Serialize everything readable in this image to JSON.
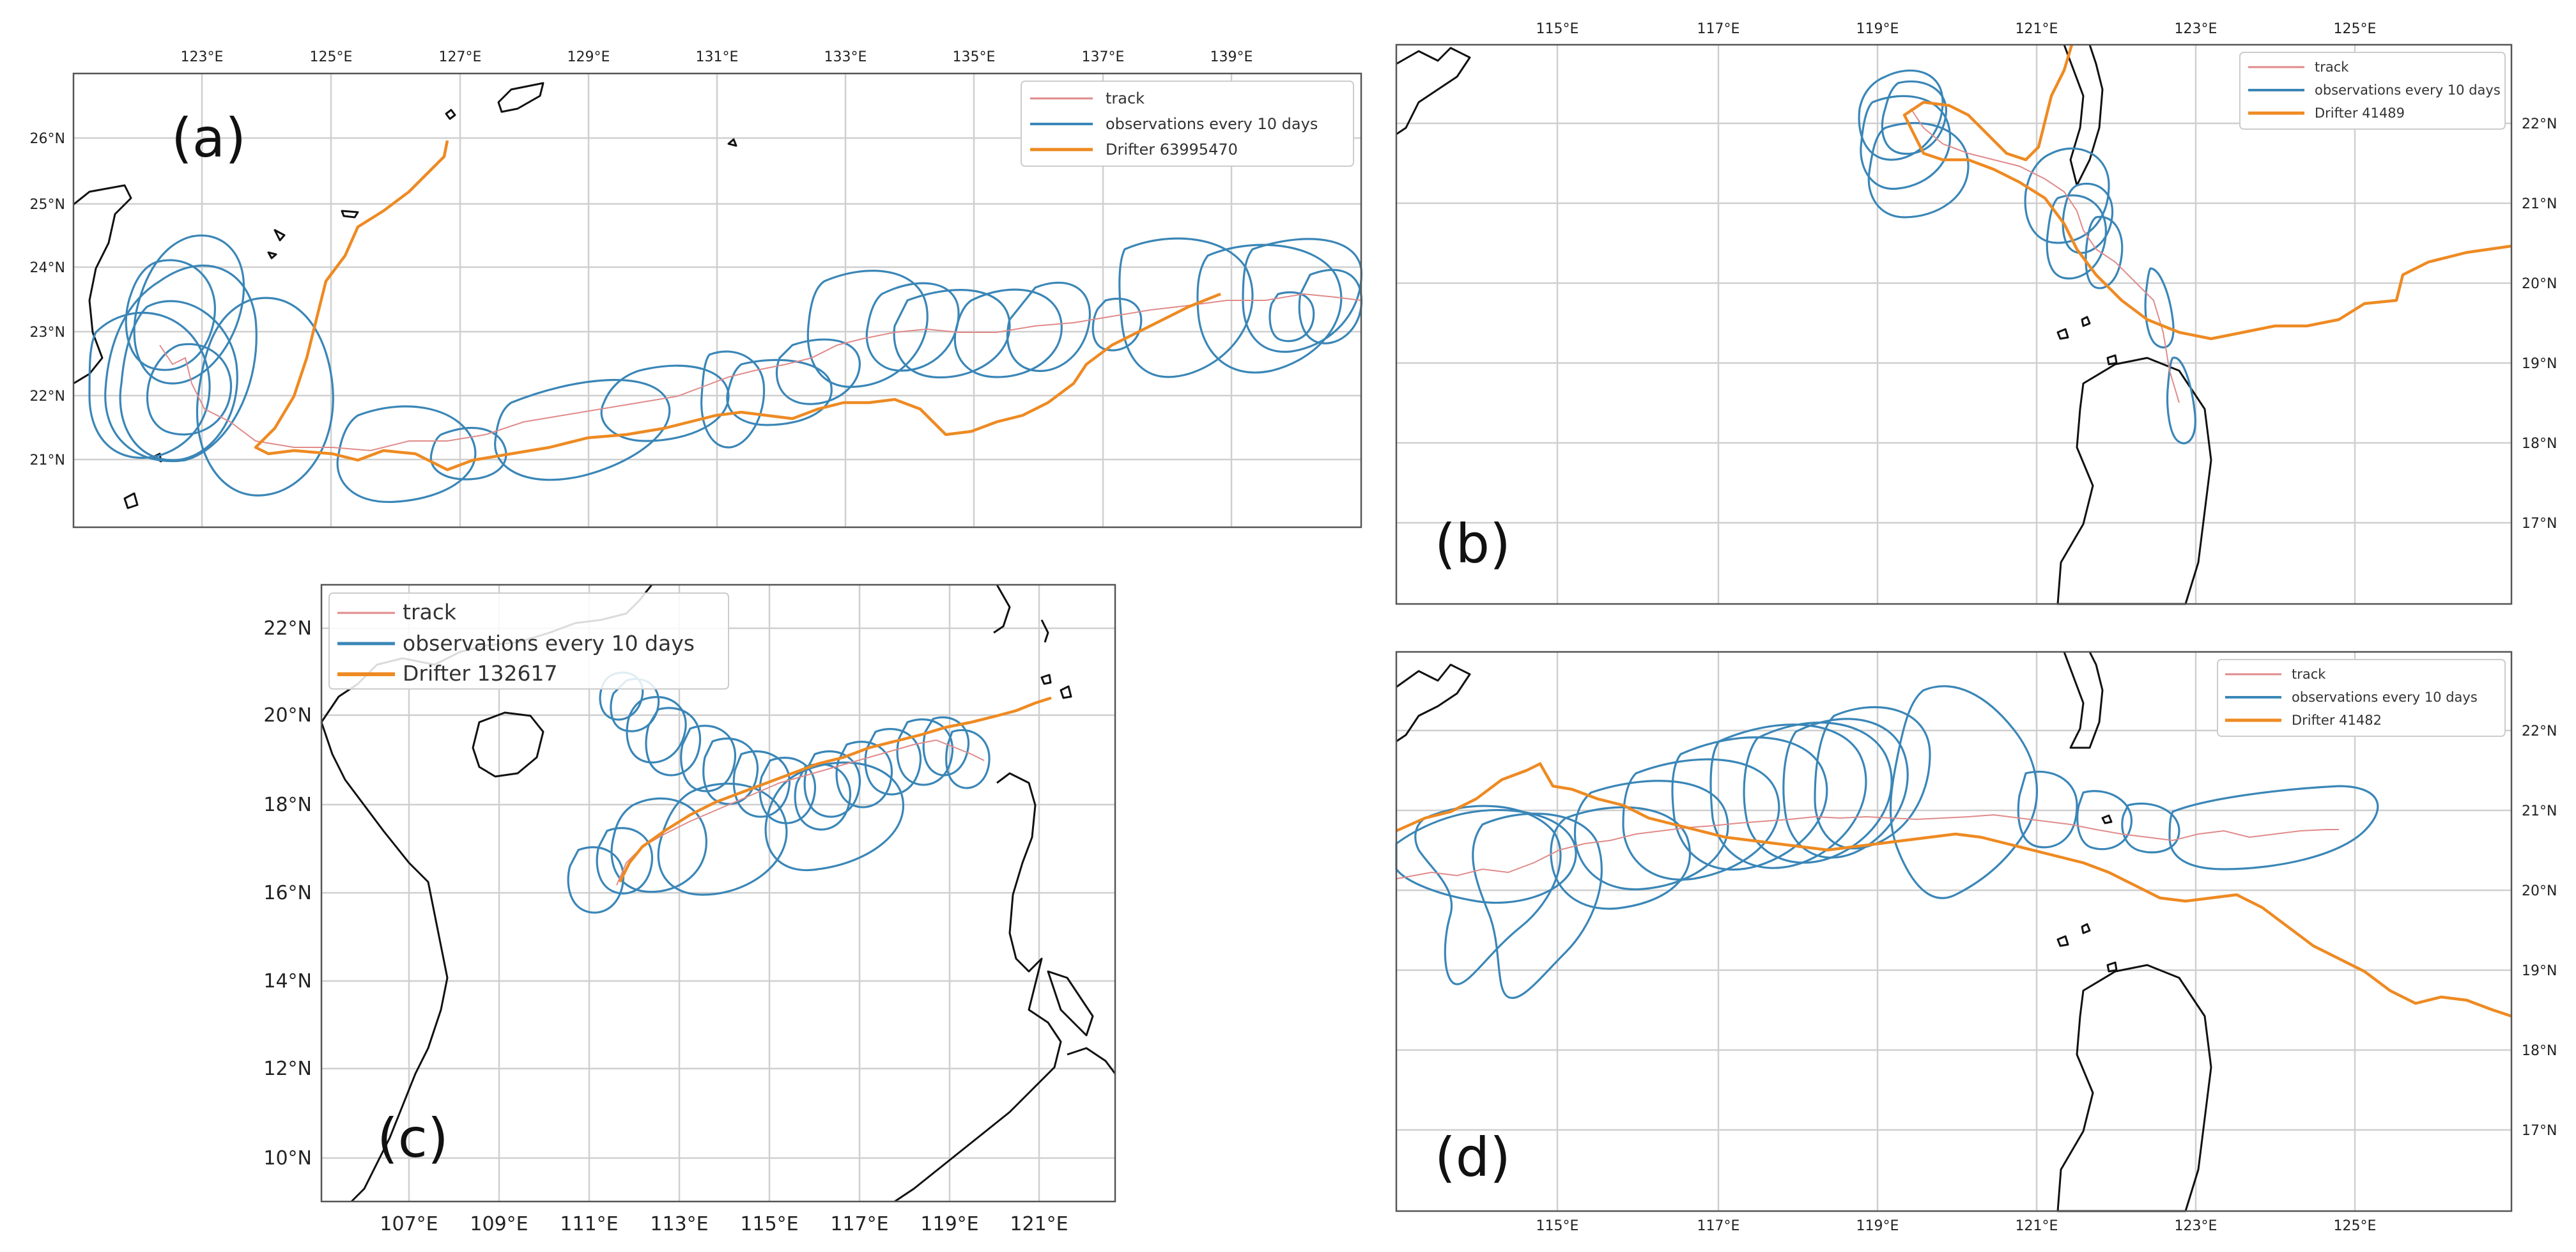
{
  "panels": {
    "a": {
      "label": "(a)",
      "x_ticks": [
        "123°E",
        "125°E",
        "127°E",
        "129°E",
        "131°E",
        "133°E",
        "135°E",
        "137°E",
        "139°E"
      ],
      "y_ticks": [
        "26°N",
        "25°N",
        "24°N",
        "23°N",
        "22°N",
        "21°N"
      ],
      "legend": {
        "track": "track",
        "observations": "observations every 10 days",
        "drifter": "Drifter 63995470"
      }
    },
    "b": {
      "label": "(b)",
      "x_ticks": [
        "115°E",
        "117°E",
        "119°E",
        "121°E",
        "123°E",
        "125°E"
      ],
      "y_ticks": [
        "22°N",
        "21°N",
        "20°N",
        "19°N",
        "18°N",
        "17°N"
      ],
      "legend": {
        "track": "track",
        "observations": "observations every 10 days",
        "drifter": "Drifter 41489"
      }
    },
    "c": {
      "label": "(c)",
      "x_ticks": [
        "107°E",
        "109°E",
        "111°E",
        "113°E",
        "115°E",
        "117°E",
        "119°E",
        "121°E"
      ],
      "y_ticks": [
        "22°N",
        "20°N",
        "18°N",
        "16°N",
        "14°N",
        "12°N",
        "10°N"
      ],
      "legend": {
        "track": "track",
        "observations": "observations every 10 days",
        "drifter": "Drifter 132617"
      }
    },
    "d": {
      "label": "(d)",
      "x_ticks": [
        "115°E",
        "117°E",
        "119°E",
        "121°E",
        "123°E",
        "125°E"
      ],
      "y_ticks": [
        "22°N",
        "21°N",
        "20°N",
        "19°N",
        "18°N",
        "17°N"
      ],
      "legend": {
        "track": "track",
        "observations": "observations every 10 days",
        "drifter": "Drifter 41482"
      }
    }
  },
  "colors": {
    "track": "#e08a8a",
    "observations": "#3a86b7",
    "drifter": "#ee8a22",
    "coastline": "#111111",
    "grid": "#cfcfcf"
  }
}
